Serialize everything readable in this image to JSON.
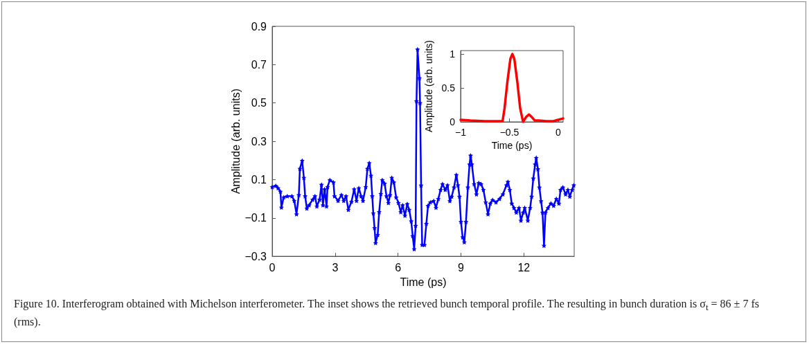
{
  "chart_data": [
    {
      "type": "line",
      "xlabel": "Time (ps)",
      "ylabel": "Amplitude (arb. units)",
      "xlim": [
        0,
        14.4
      ],
      "ylim": [
        -0.3,
        0.9
      ],
      "xticks": [
        0,
        3,
        6,
        9,
        12
      ],
      "yticks": [
        {
          "value": -0.3,
          "label": "−0.3"
        },
        {
          "value": -0.1,
          "label": "−0.1"
        },
        0.1,
        0.3,
        0.5,
        0.7,
        0.9
      ],
      "marker": "star",
      "line_style": "solid",
      "annotations": [
        "Figure 10. Interferogram obtained with Michelson interferometer. The inset shows the retrieved bunch temporal profile. The resulting in bunch duration is σ$_{t}$ = 86 ± 7 fs (rms)."
      ],
      "x": [
        0,
        0.17,
        0.28,
        0.39,
        0.44,
        0.55,
        0.72,
        0.94,
        1.05,
        1.16,
        1.27,
        1.32,
        1.43,
        1.51,
        1.57,
        1.65,
        1.76,
        1.93,
        2.04,
        2.13,
        2.26,
        2.35,
        2.42,
        2.5,
        2.59,
        2.64,
        2.75,
        2.92,
        2.97,
        3.14,
        3.3,
        3.41,
        3.52,
        3.63,
        3.78,
        3.91,
        4.02,
        4.13,
        4.24,
        4.33,
        4.46,
        4.54,
        4.63,
        4.71,
        4.77,
        4.82,
        4.88,
        4.93,
        5.03,
        5.1,
        5.18,
        5.25,
        5.36,
        5.45,
        5.54,
        5.62,
        5.7,
        5.8,
        5.91,
        6.02,
        6.13,
        6.22,
        6.33,
        6.44,
        6.53,
        6.63,
        6.7,
        6.77,
        6.84,
        6.88,
        6.93,
        7.02,
        7.05,
        7.1,
        7.15,
        7.26,
        7.35,
        7.43,
        7.54,
        7.7,
        7.81,
        7.92,
        8.03,
        8.12,
        8.25,
        8.36,
        8.47,
        8.56,
        8.67,
        8.78,
        8.86,
        8.93,
        9.0,
        9.08,
        9.16,
        9.24,
        9.33,
        9.41,
        9.46,
        9.52,
        9.63,
        9.74,
        9.85,
        9.96,
        10.07,
        10.18,
        10.29,
        10.4,
        10.51,
        10.67,
        10.84,
        11.0,
        11.17,
        11.24,
        11.33,
        11.42,
        11.53,
        11.64,
        11.77,
        11.86,
        11.97,
        12.04,
        12.19,
        12.3,
        12.37,
        12.45,
        12.54,
        12.59,
        12.67,
        12.74,
        12.82,
        12.89,
        12.96,
        13.03,
        13.15,
        13.29,
        13.42,
        13.55,
        13.67,
        13.75,
        13.86,
        13.99,
        14.1,
        14.19,
        14.3,
        14.38
      ],
      "series": [
        {
          "color": "#0000ff",
          "values": [
            0.062,
            0.068,
            0.056,
            0.038,
            -0.045,
            0.008,
            0.014,
            0.014,
            -0.01,
            -0.08,
            0.02,
            0.157,
            0.199,
            0.11,
            0.014,
            -0.05,
            -0.033,
            -0.004,
            0.014,
            -0.039,
            -0.004,
            0.074,
            -0.033,
            0.05,
            -0.039,
            0.062,
            0.098,
            0.086,
            0.014,
            -0.01,
            0.02,
            -0.01,
            0.014,
            -0.057,
            -0.015,
            0.05,
            -0.01,
            0.056,
            0.014,
            -0.01,
            0.062,
            0.157,
            0.187,
            0.121,
            0.014,
            -0.075,
            -0.152,
            -0.23,
            -0.188,
            -0.069,
            0.026,
            0.098,
            0.08,
            0.014,
            -0.021,
            0.02,
            0.11,
            0.086,
            0.008,
            -0.021,
            -0.069,
            -0.033,
            -0.087,
            -0.027,
            -0.057,
            -0.117,
            -0.194,
            -0.262,
            -0.14,
            0.51,
            0.78,
            0.63,
            0.5,
            0.07,
            -0.24,
            -0.24,
            -0.13,
            -0.036,
            -0.018,
            -0.011,
            -0.046,
            0.0,
            0.047,
            0.077,
            0.047,
            0.071,
            -0.011,
            0.012,
            0.06,
            0.125,
            0.071,
            0.012,
            -0.12,
            -0.2,
            -0.226,
            -0.12,
            0.06,
            0.18,
            0.226,
            0.18,
            0.077,
            0.024,
            0.083,
            0.077,
            0.047,
            -0.018,
            -0.08,
            -0.024,
            -0.006,
            -0.018,
            0.0,
            0.024,
            0.071,
            0.089,
            0.047,
            -0.024,
            -0.047,
            -0.071,
            -0.047,
            -0.113,
            -0.071,
            -0.047,
            -0.113,
            -0.047,
            0.012,
            0.107,
            0.18,
            0.214,
            0.155,
            0.06,
            -0.012,
            -0.071,
            -0.244,
            -0.071,
            -0.047,
            -0.024,
            -0.036,
            0.0,
            -0.024,
            0.047,
            0.06,
            0.024,
            0.047,
            0.012,
            0.047,
            0.071
          ]
        }
      ]
    },
    {
      "type": "line",
      "xlabel": "Time (ps)",
      "ylabel": "Amplitude (arb. units)",
      "xlim": [
        -1,
        0.05
      ],
      "ylim": [
        0,
        1.05
      ],
      "xticks": [
        {
          "value": -1,
          "label": "−1"
        },
        {
          "value": -0.5,
          "label": "−0.5"
        },
        0
      ],
      "yticks": [
        0,
        0.5,
        1
      ],
      "marker": "none",
      "line_style": "solid",
      "x": [
        -1,
        -0.9,
        -0.75,
        -0.6,
        -0.57,
        -0.55,
        -0.52,
        -0.49,
        -0.47,
        -0.45,
        -0.42,
        -0.39,
        -0.36,
        -0.33,
        -0.3,
        -0.27,
        -0.24,
        -0.2,
        -0.12,
        -0.05,
        0,
        0.05
      ],
      "series": [
        {
          "color": "#ff0000",
          "values": [
            0.03,
            0.02,
            0.01,
            0.01,
            0.01,
            0.2,
            0.6,
            0.93,
            1.0,
            0.93,
            0.6,
            0.2,
            0.0,
            0.07,
            0.11,
            0.07,
            0.02,
            0.02,
            0.01,
            0.01,
            0.03,
            0.05
          ]
        }
      ]
    }
  ]
}
